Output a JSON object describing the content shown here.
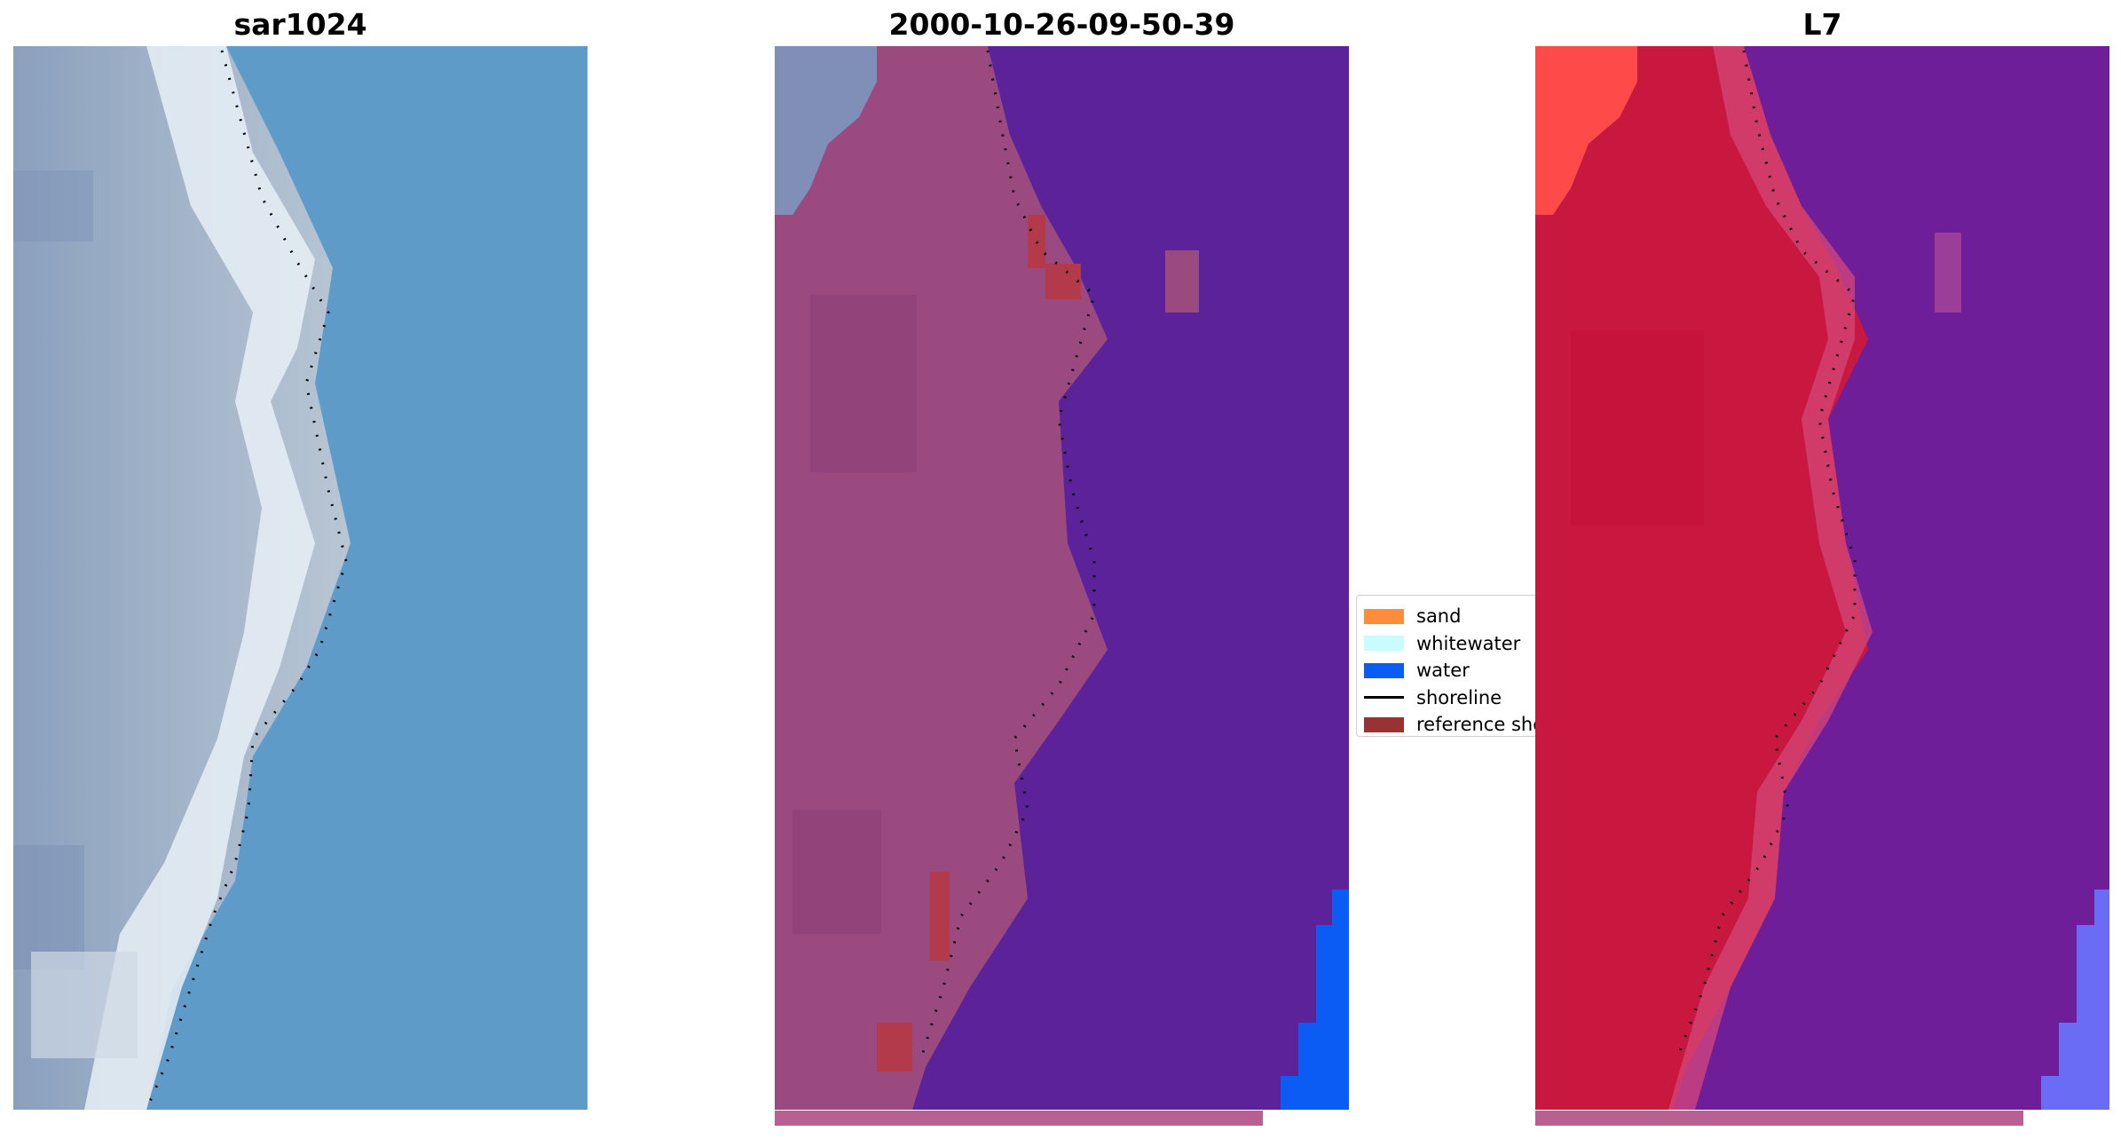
{
  "panels": [
    {
      "title": "sar1024",
      "kind": "rgb-composite"
    },
    {
      "title": "2000-10-26-09-50-39",
      "kind": "classified-overlay"
    },
    {
      "title": "L7",
      "kind": "index-map"
    }
  ],
  "legend": {
    "items": [
      {
        "label": "sand",
        "type": "patch",
        "color": "#ff8c3a"
      },
      {
        "label": "whitewater",
        "type": "patch",
        "color": "#c9fbff"
      },
      {
        "label": "water",
        "type": "patch",
        "color": "#0b5cf5"
      },
      {
        "label": "shoreline",
        "type": "line",
        "color": "#000000"
      },
      {
        "label": "reference shoreline",
        "type": "patch",
        "color": "#993333"
      }
    ]
  },
  "colors": {
    "sar_water": "#5f9bc8",
    "sar_land": "#9fb0c8",
    "sar_surf": "#f0f6fa",
    "class_water": "#5b229a",
    "class_land": "#9b4a80",
    "class_ref": "#b23a4a",
    "class_blue": "#0b5cf5",
    "l7_land": "#c8183f",
    "l7_water": "#6f1e9a",
    "l7_bright": "#ff4a4a",
    "l7_blue": "#6a6cf5",
    "bottom_strip": "#b86090"
  }
}
